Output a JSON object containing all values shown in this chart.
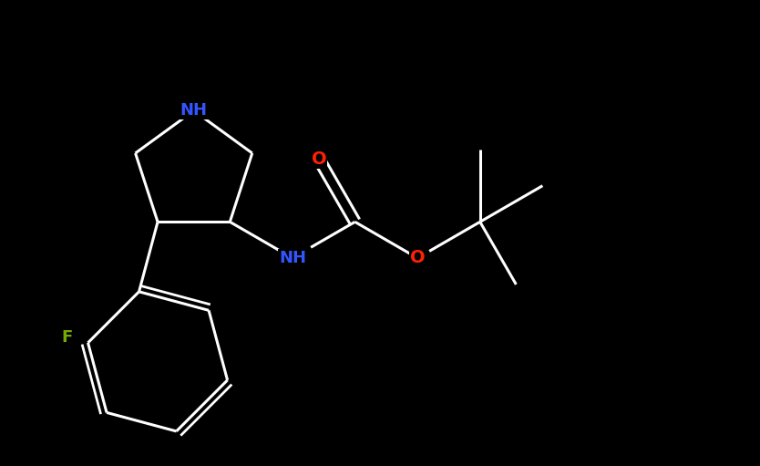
{
  "background_color": "#000000",
  "bond_color": "#ffffff",
  "atom_colors": {
    "N": "#3355ff",
    "O": "#ff2200",
    "F": "#77aa00",
    "C": "#ffffff"
  },
  "bond_width": 2.2,
  "fig_width": 8.34,
  "fig_height": 5.11,
  "dpi": 100,
  "xlim": [
    0,
    10
  ],
  "ylim": [
    0,
    6
  ]
}
